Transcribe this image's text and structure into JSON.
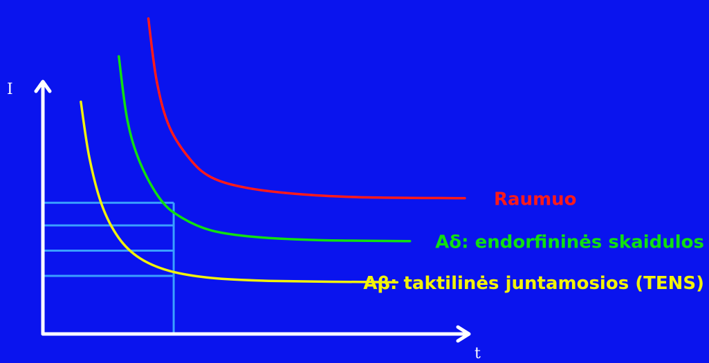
{
  "colors": {
    "background": "#0a14ee",
    "axis": "#ffffff",
    "grid": "#3aa0ff"
  },
  "chart_data": {
    "type": "line",
    "title": "",
    "xlabel": "t",
    "ylabel": "I",
    "grid": true,
    "xlim": [
      0,
      10
    ],
    "ylim": [
      0,
      10
    ],
    "threshold_lines": [
      2.3,
      3.3,
      4.3,
      5.2
    ],
    "limit_x": 3.1,
    "series": [
      {
        "name": "Raumuo",
        "color": "#ff1a1a",
        "x": [
          2.5,
          2.7,
          3.0,
          3.5,
          4.0,
          4.8,
          6.0,
          7.5,
          10.0
        ],
        "y": [
          12.5,
          10.0,
          8.2,
          6.9,
          6.2,
          5.8,
          5.55,
          5.42,
          5.38
        ]
      },
      {
        "name": "Aδ: endorfininės skaidulos",
        "color": "#10e010",
        "x": [
          1.8,
          2.0,
          2.3,
          2.8,
          3.3,
          4.0,
          5.0,
          6.5,
          8.7
        ],
        "y": [
          11.0,
          8.5,
          6.8,
          5.3,
          4.6,
          4.1,
          3.85,
          3.72,
          3.68
        ]
      },
      {
        "name": "Aβ: taktilinės juntamosios (TENS)",
        "color": "#f2f20a",
        "x": [
          0.9,
          1.1,
          1.4,
          1.8,
          2.3,
          3.0,
          4.0,
          5.5,
          8.4
        ],
        "y": [
          9.2,
          7.0,
          5.1,
          3.8,
          3.0,
          2.5,
          2.22,
          2.1,
          2.05
        ]
      }
    ]
  }
}
